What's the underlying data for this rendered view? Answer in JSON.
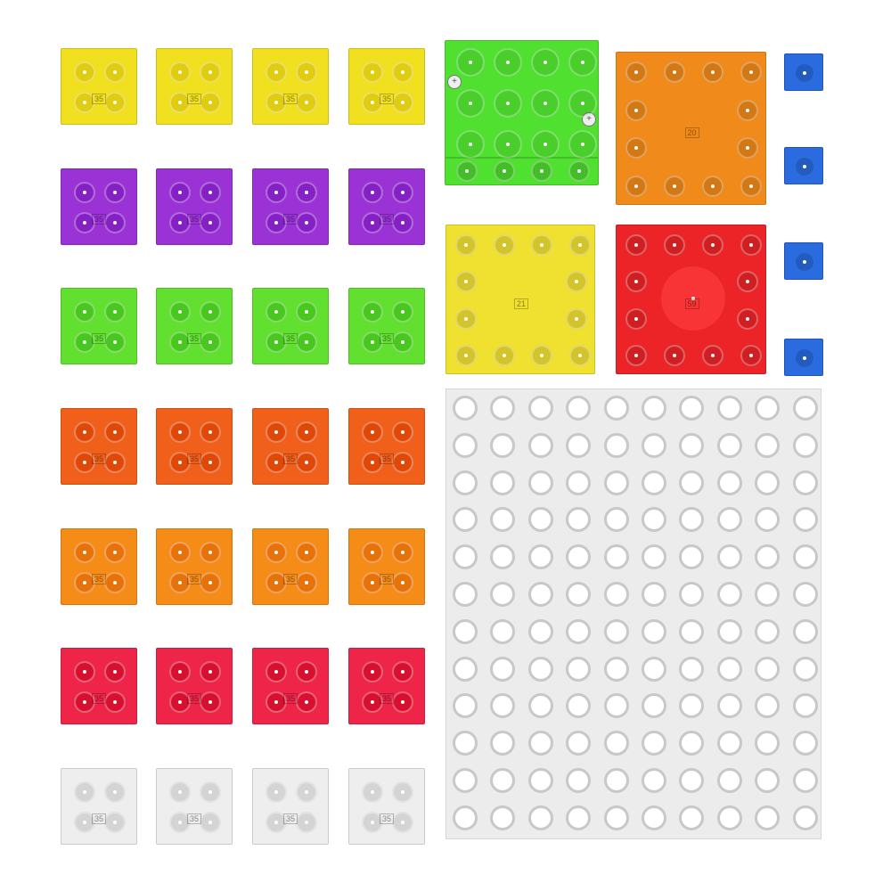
{
  "small_tiles": {
    "label": "35",
    "rows": [
      {
        "color": "#f0e020",
        "stud": "#e0cc10"
      },
      {
        "color": "#9a32d6",
        "stud": "#8420c4"
      },
      {
        "color": "#62e030",
        "stud": "#48c81e"
      },
      {
        "color": "#f0601a",
        "stud": "#e04808"
      },
      {
        "color": "#f58c18",
        "stud": "#e8720a"
      },
      {
        "color": "#ee2448",
        "stud": "#d81030"
      },
      {
        "color": "#eeeeee",
        "stud": "#d4d4d4"
      }
    ]
  },
  "large_tiles": [
    {
      "name": "green-module",
      "color": "#50e030",
      "label": ""
    },
    {
      "name": "orange-module",
      "color": "#f08a1a",
      "label": "20"
    },
    {
      "name": "yellow-module",
      "color": "#f0e030",
      "label": "21"
    },
    {
      "name": "red-module",
      "color": "#ec2428",
      "label": "59"
    }
  ],
  "blue_connectors": {
    "color": "#2a6ce0",
    "count": 4
  },
  "baseplate": {
    "color": "#ececec",
    "columns": 10,
    "rows": 12
  }
}
